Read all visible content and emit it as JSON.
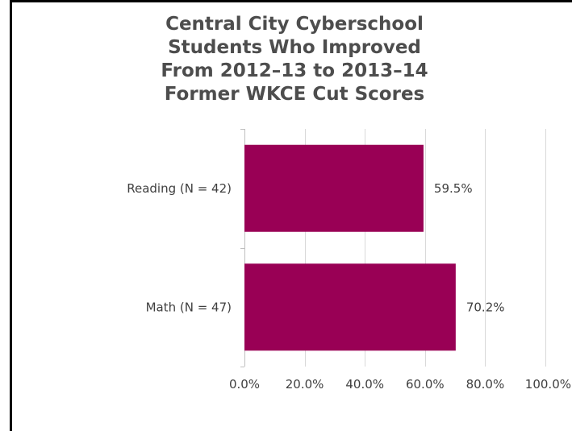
{
  "chart_data": {
    "type": "bar",
    "orientation": "horizontal",
    "title": "Central City Cyberschool\nStudents Who Improved\nFrom 2012–13 to 2013–14\nFormer WKCE Cut Scores",
    "title_lines": [
      "Central City Cyberschool",
      "Students Who Improved",
      "From 2012–13 to 2013–14",
      "Former WKCE Cut Scores"
    ],
    "categories": [
      "Reading (N = 42)",
      "Math (N = 47)"
    ],
    "values": [
      59.5,
      70.2
    ],
    "data_labels": [
      "59.5%",
      "70.2%"
    ],
    "xlim": [
      0,
      100
    ],
    "x_ticks": [
      0,
      20,
      40,
      60,
      80,
      100
    ],
    "x_tick_labels": [
      "0.0%",
      "20.0%",
      "40.0%",
      "60.0%",
      "80.0%",
      "100.0%"
    ],
    "xlabel": "",
    "ylabel": "",
    "grid": "vertical",
    "legend": "none",
    "bar_color": "#990055",
    "grid_color": "#d9d9d9",
    "axis_color": "#bfbfbf"
  }
}
